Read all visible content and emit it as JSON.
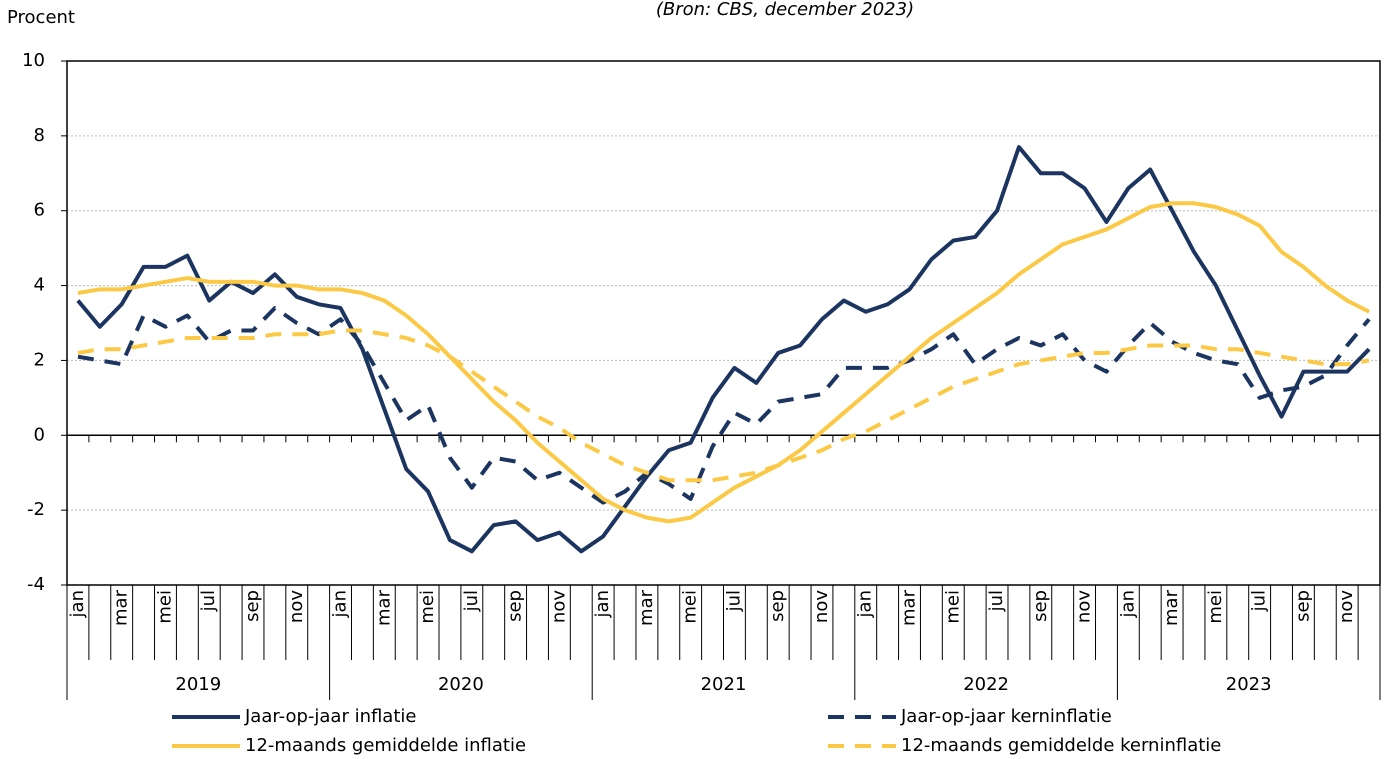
{
  "chart_data": {
    "type": "line",
    "subtitle": "(Bron: CBS, december 2023)",
    "y_label": "Procent",
    "categories": [
      "jan",
      null,
      "mar",
      null,
      "mei",
      null,
      "jul",
      null,
      "sep",
      null,
      "nov",
      null,
      "jan",
      null,
      "mar",
      null,
      "mei",
      null,
      "jul",
      null,
      "sep",
      null,
      "nov",
      null,
      "jan",
      null,
      "mar",
      null,
      "mei",
      null,
      "jul",
      null,
      "sep",
      null,
      "nov",
      null,
      "jan",
      null,
      "mar",
      null,
      "mei",
      null,
      "jul",
      null,
      "sep",
      null,
      "nov",
      null,
      "jan",
      null,
      "mar",
      null,
      "mei",
      null,
      "jul",
      null,
      "sep",
      null,
      "nov",
      null
    ],
    "x_groups": [
      "2019",
      "2020",
      "2021",
      "2022",
      "2023"
    ],
    "ylim": [
      -4,
      10
    ],
    "yticks": [
      -4,
      -2,
      0,
      2,
      4,
      6,
      8,
      10
    ],
    "grid": true,
    "series": [
      {
        "name": "Jaar-op-jaar inflatie",
        "color": "#1c3560",
        "dashed": false,
        "values": [
          3.6,
          2.9,
          3.5,
          4.5,
          4.5,
          4.8,
          3.6,
          4.1,
          3.8,
          4.3,
          3.7,
          3.5,
          3.4,
          2.3,
          0.7,
          -0.9,
          -1.5,
          -2.8,
          -3.1,
          -2.4,
          -2.3,
          -2.8,
          -2.6,
          -3.1,
          -2.7,
          -1.9,
          -1.1,
          -0.4,
          -0.2,
          1.0,
          1.8,
          1.4,
          2.2,
          2.4,
          3.1,
          3.6,
          3.3,
          3.5,
          3.9,
          4.7,
          5.2,
          5.3,
          6.0,
          7.7,
          7.0,
          7.0,
          6.6,
          5.7,
          6.6,
          7.1,
          6.0,
          4.9,
          4.0,
          2.8,
          1.6,
          0.5,
          1.7,
          1.7,
          1.7,
          2.3
        ]
      },
      {
        "name": "Jaar-op-jaar kerninflatie",
        "color": "#1c3560",
        "dashed": true,
        "values": [
          2.1,
          2.0,
          1.9,
          3.2,
          2.9,
          3.2,
          2.5,
          2.8,
          2.8,
          3.4,
          3.0,
          2.7,
          3.1,
          2.4,
          1.4,
          0.4,
          0.8,
          -0.6,
          -1.4,
          -0.6,
          -0.7,
          -1.2,
          -1.0,
          -1.4,
          -1.8,
          -1.5,
          -1.0,
          -1.3,
          -1.7,
          -0.3,
          0.6,
          0.3,
          0.9,
          1.0,
          1.1,
          1.8,
          1.8,
          1.8,
          2.0,
          2.3,
          2.7,
          1.9,
          2.3,
          2.6,
          2.4,
          2.7,
          2.0,
          1.7,
          2.4,
          3.0,
          2.5,
          2.2,
          2.0,
          1.9,
          1.0,
          1.2,
          1.3,
          1.6,
          2.4,
          3.1
        ]
      },
      {
        "name": "12-maands gemiddelde inflatie",
        "color": "#fcc946",
        "dashed": false,
        "values": [
          3.8,
          3.9,
          3.9,
          4.0,
          4.1,
          4.2,
          4.1,
          4.1,
          4.1,
          4.0,
          4.0,
          3.9,
          3.9,
          3.8,
          3.6,
          3.2,
          2.7,
          2.1,
          1.5,
          0.9,
          0.4,
          -0.2,
          -0.7,
          -1.2,
          -1.7,
          -2.0,
          -2.2,
          -2.3,
          -2.2,
          -1.8,
          -1.4,
          -1.1,
          -0.8,
          -0.4,
          0.1,
          0.6,
          1.1,
          1.6,
          2.1,
          2.6,
          3.0,
          3.4,
          3.8,
          4.3,
          4.7,
          5.1,
          5.3,
          5.5,
          5.8,
          6.1,
          6.2,
          6.2,
          6.1,
          5.9,
          5.6,
          4.9,
          4.5,
          4.0,
          3.6,
          3.3
        ]
      },
      {
        "name": "12-maands gemiddelde kerninflatie",
        "color": "#fcc946",
        "dashed": true,
        "values": [
          2.2,
          2.3,
          2.3,
          2.4,
          2.5,
          2.6,
          2.6,
          2.6,
          2.6,
          2.7,
          2.7,
          2.7,
          2.8,
          2.8,
          2.7,
          2.6,
          2.4,
          2.1,
          1.7,
          1.3,
          0.9,
          0.5,
          0.2,
          -0.2,
          -0.5,
          -0.8,
          -1.0,
          -1.2,
          -1.2,
          -1.2,
          -1.1,
          -1.0,
          -0.8,
          -0.6,
          -0.4,
          -0.1,
          0.1,
          0.4,
          0.7,
          1.0,
          1.3,
          1.5,
          1.7,
          1.9,
          2.0,
          2.1,
          2.2,
          2.2,
          2.3,
          2.4,
          2.4,
          2.4,
          2.3,
          2.3,
          2.2,
          2.1,
          2.0,
          1.9,
          1.9,
          2.0
        ]
      }
    ]
  }
}
